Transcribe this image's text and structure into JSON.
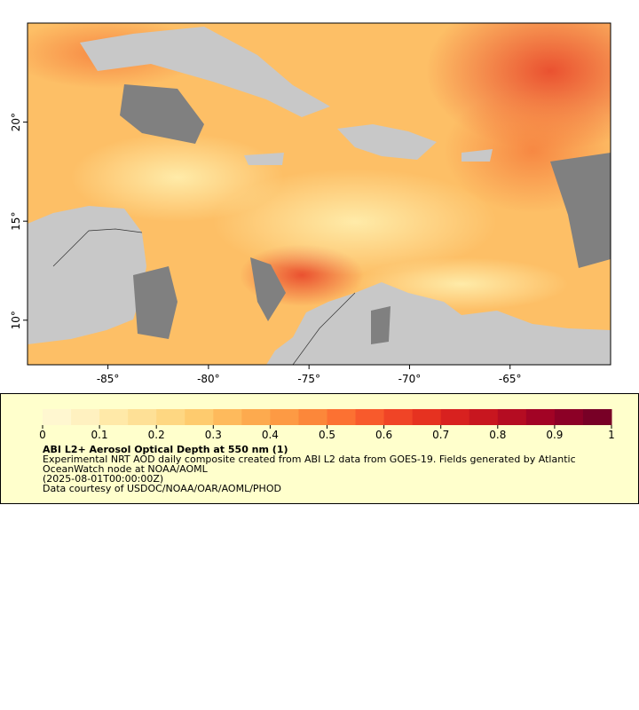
{
  "map": {
    "xlim": [
      -89,
      -60
    ],
    "ylim": [
      7.75,
      25
    ],
    "xticks": [
      {
        "value": -85,
        "label": "-85°"
      },
      {
        "value": -80,
        "label": "-80°"
      },
      {
        "value": -75,
        "label": "-75°"
      },
      {
        "value": -70,
        "label": "-70°"
      },
      {
        "value": -65,
        "label": "-65°"
      }
    ],
    "yticks": [
      {
        "value": 10,
        "label": "10°"
      },
      {
        "value": 15,
        "label": "15°"
      },
      {
        "value": 20,
        "label": "20°"
      }
    ]
  },
  "legend": {
    "clim": [
      0,
      1
    ],
    "ticks": [
      0,
      0.1,
      0.2,
      0.3,
      0.4,
      0.5,
      0.6,
      0.7,
      0.8,
      0.9,
      1
    ],
    "colors": [
      "#fff7d0",
      "#fff1c0",
      "#ffe9a8",
      "#fee096",
      "#fed782",
      "#fecb6e",
      "#feba5c",
      "#fdaa4e",
      "#fd9a44",
      "#fc873a",
      "#fc7132",
      "#f85a2c",
      "#f04426",
      "#e63220",
      "#d8211f",
      "#c8161f",
      "#b50c22",
      "#a20325",
      "#8c0026",
      "#780026"
    ],
    "title": "ABI L2+ Aerosol Optical Depth at 550 nm (1)",
    "description": "Experimental NRT AOD daily composite created from ABI L2 data from GOES-19. Fields generated by Atlantic OceanWatch node at NOAA/AOML",
    "time": "(2025-08-01T00:00:00Z)",
    "credit": "Data courtesy of USDOC/NOAA/OAR/AOML/PHOD"
  }
}
